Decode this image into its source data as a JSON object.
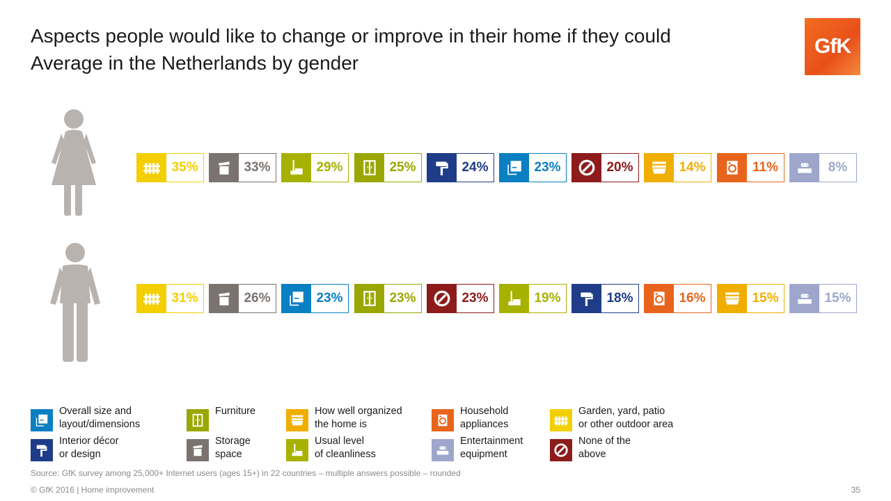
{
  "title_line1": "Aspects people would like to change or improve in their home if they could",
  "title_line2": "Average in the Netherlands by gender",
  "logo_text": "GfK",
  "categories": {
    "garden": {
      "label": "Garden, yard, patio or other outdoor area",
      "color": "#f3cf00",
      "icon": "fence-icon"
    },
    "storage": {
      "label": "Storage space",
      "color": "#7a7370",
      "icon": "storage-box-icon"
    },
    "cleanliness": {
      "label": "Usual level of cleanliness",
      "color": "#a7b200",
      "icon": "mop-bucket-icon"
    },
    "furniture": {
      "label": "Furniture",
      "color": "#9aa700",
      "icon": "wardrobe-icon"
    },
    "decor": {
      "label": "Interior décor or design",
      "color": "#1f3c88",
      "icon": "paint-roller-icon"
    },
    "size": {
      "label": "Overall size and layout/dimensions",
      "color": "#0a7fc1",
      "icon": "floor-plan-icon"
    },
    "none": {
      "label": "None of the above",
      "color": "#8e1b1b",
      "icon": "no-entry-icon"
    },
    "organized": {
      "label": "How well organized the home is",
      "color": "#f0ae00",
      "icon": "drawer-icon"
    },
    "appliances": {
      "label": "Household appliances",
      "color": "#e8641c",
      "icon": "washing-machine-icon"
    },
    "entertainment": {
      "label": "Entertainment equipment",
      "color": "#9ea6cb",
      "icon": "game-console-icon"
    }
  },
  "chart_data": {
    "type": "table",
    "series": [
      {
        "gender": "female",
        "items": [
          {
            "category": "garden",
            "value": 35,
            "label": "35%"
          },
          {
            "category": "storage",
            "value": 33,
            "label": "33%"
          },
          {
            "category": "cleanliness",
            "value": 29,
            "label": "29%"
          },
          {
            "category": "furniture",
            "value": 25,
            "label": "25%"
          },
          {
            "category": "decor",
            "value": 24,
            "label": "24%"
          },
          {
            "category": "size",
            "value": 23,
            "label": "23%"
          },
          {
            "category": "none",
            "value": 20,
            "label": "20%"
          },
          {
            "category": "organized",
            "value": 14,
            "label": "14%"
          },
          {
            "category": "appliances",
            "value": 11,
            "label": "11%"
          },
          {
            "category": "entertainment",
            "value": 8,
            "label": "8%"
          }
        ]
      },
      {
        "gender": "male",
        "items": [
          {
            "category": "garden",
            "value": 31,
            "label": "31%"
          },
          {
            "category": "storage",
            "value": 26,
            "label": "26%"
          },
          {
            "category": "size",
            "value": 23,
            "label": "23%"
          },
          {
            "category": "furniture",
            "value": 23,
            "label": "23%"
          },
          {
            "category": "none",
            "value": 23,
            "label": "23%"
          },
          {
            "category": "cleanliness",
            "value": 19,
            "label": "19%"
          },
          {
            "category": "decor",
            "value": 18,
            "label": "18%"
          },
          {
            "category": "appliances",
            "value": 16,
            "label": "16%"
          },
          {
            "category": "organized",
            "value": 15,
            "label": "15%"
          },
          {
            "category": "entertainment",
            "value": 15,
            "label": "15%"
          }
        ]
      }
    ]
  },
  "legend": [
    {
      "category": "size",
      "line1": "Overall size and",
      "line2": "layout/dimensions"
    },
    {
      "category": "decor",
      "line1": "Interior décor",
      "line2": "or design"
    },
    {
      "category": "furniture",
      "line1": "Furniture",
      "line2": ""
    },
    {
      "category": "storage",
      "line1": "Storage",
      "line2": "space"
    },
    {
      "category": "organized",
      "line1": "How well organized",
      "line2": "the home is"
    },
    {
      "category": "cleanliness",
      "line1": "Usual level",
      "line2": "of cleanliness"
    },
    {
      "category": "appliances",
      "line1": "Household",
      "line2": "appliances"
    },
    {
      "category": "entertainment",
      "line1": "Entertainment",
      "line2": "equipment"
    },
    {
      "category": "garden",
      "line1": "Garden, yard, patio",
      "line2": "or other outdoor area"
    },
    {
      "category": "none",
      "line1": "None of the",
      "line2": "above"
    }
  ],
  "source": "Source: GfK survey among 25,000+ Internet users (ages 15+) in 22 countries – multiple answers possible – rounded",
  "footer": "© GfK 2016 | Home improvement",
  "page_number": "35"
}
